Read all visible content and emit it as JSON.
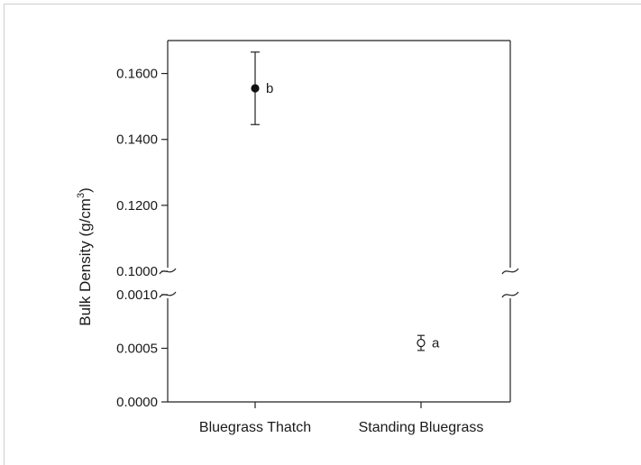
{
  "chart_data": {
    "type": "scatter",
    "ylabel": "Bulk Density (g/cm",
    "ylabel_sup": "3",
    "ylabel_close": ")",
    "y_axis_broken": true,
    "upper_segment": {
      "ylim": [
        0.1,
        0.17
      ],
      "ticks": [
        "0.1600",
        "0.1400",
        "0.1200",
        "0.1000"
      ]
    },
    "lower_segment": {
      "ylim": [
        0.0,
        0.001
      ],
      "ticks": [
        "0.0010",
        "0.0005",
        "0.0000"
      ]
    },
    "categories": [
      "Bluegrass Thatch",
      "Standing Bluegrass"
    ],
    "points": [
      {
        "category": "Bluegrass Thatch",
        "value": 0.1555,
        "err_low": 0.1445,
        "err_high": 0.1665,
        "marker": "filled",
        "annotation": "b"
      },
      {
        "category": "Standing Bluegrass",
        "value": 0.00055,
        "err_low": 0.00048,
        "err_high": 0.00062,
        "marker": "open",
        "annotation": "a"
      }
    ],
    "grid": false,
    "legend": false
  }
}
